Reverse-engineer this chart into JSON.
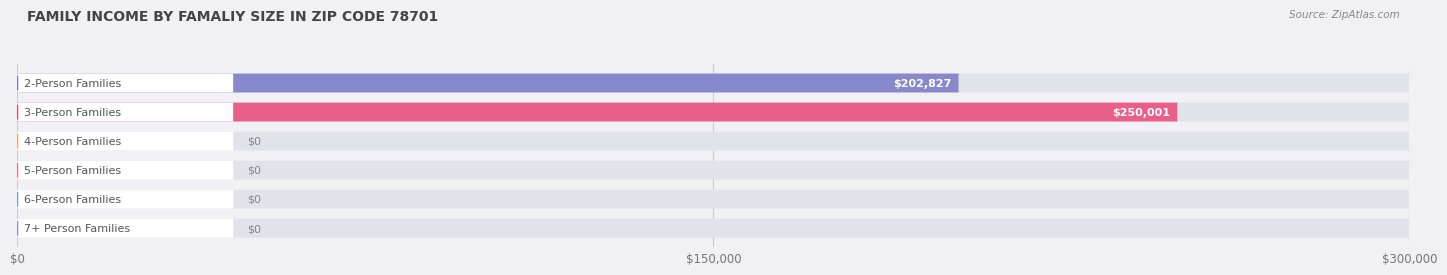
{
  "title": "FAMILY INCOME BY FAMALIY SIZE IN ZIP CODE 78701",
  "source": "Source: ZipAtlas.com",
  "categories": [
    "2-Person Families",
    "3-Person Families",
    "4-Person Families",
    "5-Person Families",
    "6-Person Families",
    "7+ Person Families"
  ],
  "values": [
    202827,
    250001,
    0,
    0,
    0,
    0
  ],
  "bar_colors": [
    "#8888cc",
    "#e8608a",
    "#f5c49a",
    "#f0a8a8",
    "#a8bedd",
    "#c4aed0"
  ],
  "dot_colors": [
    "#7878c0",
    "#e04878",
    "#e8a870",
    "#e87878",
    "#8098cc",
    "#a888c0"
  ],
  "value_labels": [
    "$202,827",
    "$250,001",
    "$0",
    "$0",
    "$0",
    "$0"
  ],
  "xlim": [
    0,
    300000
  ],
  "xtick_labels": [
    "$0",
    "$150,000",
    "$300,000"
  ],
  "xtick_values": [
    0,
    150000,
    300000
  ],
  "background_color": "#f0f0f5",
  "bar_bg_color": "#e2e2ea",
  "row_bg_color": "#f0f0f5",
  "label_bg_color": "#ffffff",
  "title_color": "#444444",
  "source_color": "#888888",
  "label_text_color": "#555555",
  "value_label_color_inside": "#ffffff",
  "value_label_color_outside": "#888888"
}
